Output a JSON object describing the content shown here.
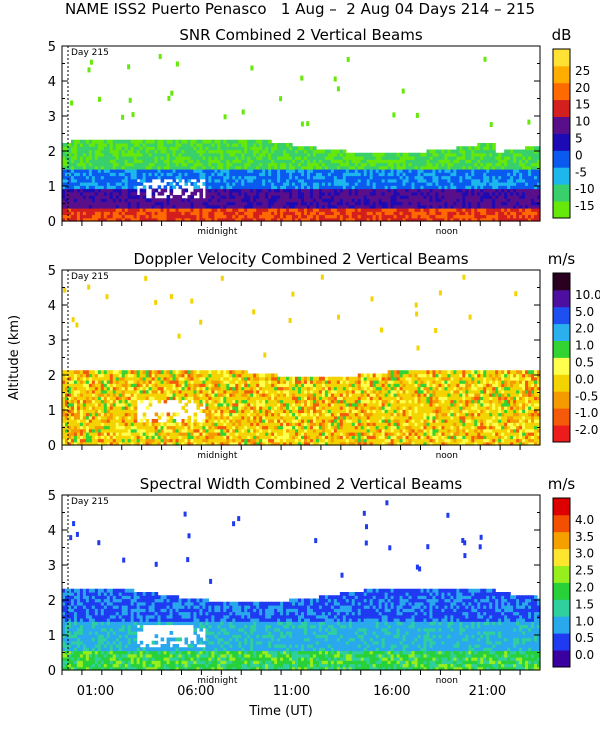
{
  "header": {
    "title": "NAME ISS2 Puerto Penasco   1 Aug –  2 Aug 04 Days 214 – 215"
  },
  "chart_data": [
    {
      "type": "heatmap",
      "title": "SNR Combined 2 Vertical Beams",
      "unit": "dB",
      "day_label": "Day 215",
      "ylabel": "",
      "ylim": [
        0,
        5
      ],
      "yticks": [
        "0",
        "1",
        "2",
        "3",
        "4",
        "5"
      ],
      "xticks": [
        "01:00",
        "06:00",
        "11:00",
        "16:00",
        "21:00"
      ],
      "x_markers": [
        "midnight",
        "noon"
      ],
      "colorbar": {
        "labels": [
          "-15",
          "-10",
          "-5",
          "0",
          "5",
          "10",
          "15",
          "20",
          "25"
        ],
        "colors": [
          "#66e80a",
          "#39d06b",
          "#1db7ee",
          "#0a5af0",
          "#1c0bb5",
          "#5a0f8a",
          "#d41f1f",
          "#ff6a00",
          "#ffae00",
          "#ffe234"
        ]
      },
      "layers": [
        {
          "from_km": 0.0,
          "to_km": 0.35,
          "label": "15 to 25 dB"
        },
        {
          "from_km": 0.35,
          "to_km": 0.9,
          "label": "5 to 15 dB"
        },
        {
          "from_km": 0.9,
          "to_km": 1.5,
          "label": "-5 to 5 dB"
        },
        {
          "from_km": 1.5,
          "to_km": 2.4,
          "label": "-15 to -5 dB"
        }
      ]
    },
    {
      "type": "heatmap",
      "title": "Doppler Velocity Combined 2 Vertical Beams",
      "unit": "m/s",
      "day_label": "Day 215",
      "ylabel": "Altitude (km)",
      "ylim": [
        0,
        5
      ],
      "yticks": [
        "0",
        "1",
        "2",
        "3",
        "4",
        "5"
      ],
      "xticks": [
        "01:00",
        "06:00",
        "11:00",
        "16:00",
        "21:00"
      ],
      "x_markers": [
        "midnight",
        "noon"
      ],
      "colorbar": {
        "labels": [
          "-2.0",
          "-1.0",
          "-0.5",
          "0.0",
          "0.5",
          "1.0",
          "2.0",
          "5.0",
          "10.0"
        ],
        "colors": [
          "#ec1c1c",
          "#f45a0a",
          "#f59a00",
          "#f3d300",
          "#ffff4d",
          "#33d333",
          "#2bb0ee",
          "#1e4ff0",
          "#4e0fa0",
          "#2a0020"
        ]
      },
      "layers": [
        {
          "from_km": 0.0,
          "to_km": 2.2,
          "label": "0.0 to 0.5 m/s"
        }
      ]
    },
    {
      "type": "heatmap",
      "title": "Spectral Width Combined 2 Vertical Beams",
      "unit": "m/s",
      "day_label": "Day 215",
      "ylabel": "",
      "ylim": [
        0,
        5
      ],
      "yticks": [
        "0",
        "1",
        "2",
        "3",
        "4",
        "5"
      ],
      "xticks": [
        "01:00",
        "06:00",
        "11:00",
        "16:00",
        "21:00"
      ],
      "x_markers": [
        "midnight",
        "noon"
      ],
      "xlabel": "Time (UT)",
      "colorbar": {
        "labels": [
          "0.0",
          "0.5",
          "1.0",
          "1.5",
          "2.0",
          "2.5",
          "3.0",
          "3.5",
          "4.0"
        ],
        "colors": [
          "#3a00a0",
          "#1f3af0",
          "#2aa8ee",
          "#2fcf9e",
          "#28d13a",
          "#98ee1c",
          "#ffe62e",
          "#f6a000",
          "#f25000",
          "#dd0000"
        ]
      },
      "layers": [
        {
          "from_km": 0.0,
          "to_km": 0.6,
          "label": "1.5 to 2.5 m/s"
        },
        {
          "from_km": 0.6,
          "to_km": 1.4,
          "label": "1.0 to 1.5 m/s"
        },
        {
          "from_km": 1.4,
          "to_km": 2.4,
          "label": "0.5 to 1.0 m/s"
        }
      ]
    }
  ]
}
